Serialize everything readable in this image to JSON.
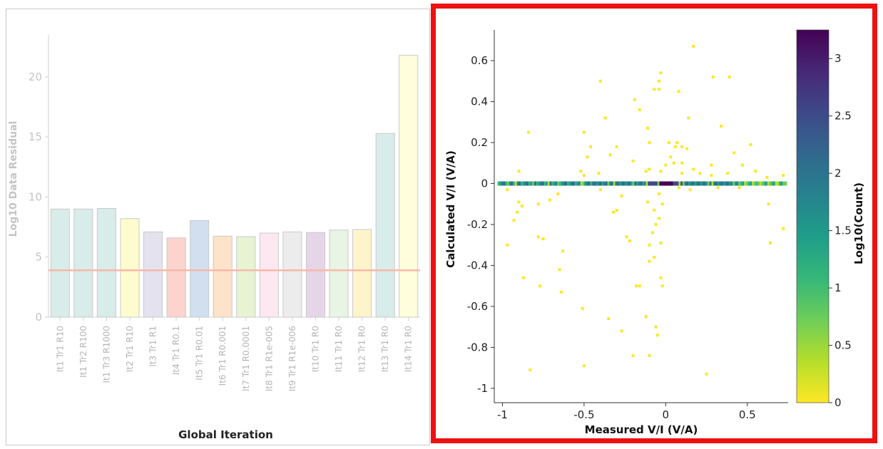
{
  "chart_data": [
    {
      "type": "bar",
      "xlabel": "Global Iteration",
      "ylabel": "Log10 Data Residual",
      "ylim": [
        0,
        23.5
      ],
      "yticks": [
        "0",
        "5",
        "10",
        "15",
        "20"
      ],
      "grid": false,
      "categories": [
        "It1 Tr1 R10",
        "It1 Tr2 R100",
        "It1 Tr3 R1000",
        "It2 Tr1 R10",
        "It3 Tr1 R1",
        "It4 Tr1 R0.1",
        "It5 Tr1 R0.01",
        "It6 Tr1 R0.001",
        "It7 Tr1 R0.0001",
        "It8 Tr1 R1e-005",
        "It9 Tr1 R1e-006",
        "It10 Tr1 R0",
        "It11 Tr1 R0",
        "It12 Tr1 R0",
        "It13 Tr1 R0",
        "It14 Tr1 R0"
      ],
      "values": [
        9.0,
        9.0,
        9.05,
        8.2,
        7.1,
        6.6,
        8.05,
        6.75,
        6.7,
        7.0,
        7.1,
        7.05,
        7.25,
        7.3,
        15.3,
        21.8
      ],
      "bar_colors": [
        "#d8ecea",
        "#d8ecea",
        "#d8ecea",
        "#fefccf",
        "#e4e2ee",
        "#fcd3cd",
        "#d1dfee",
        "#fde3c9",
        "#e6f4d4",
        "#fde8f1",
        "#ececec",
        "#e6d5e8",
        "#e8f4e4",
        "#fdf4cc",
        "#d8ecea",
        "#fefddc"
      ],
      "reference_line": {
        "value": 3.9,
        "color": "#f9b7a8"
      }
    },
    {
      "type": "heatmap",
      "xlabel": "Measured V/I (V/A)",
      "ylabel": "Calculated V/I (V/A)",
      "xlim": [
        -1.05,
        0.75
      ],
      "ylim": [
        -1.07,
        0.75
      ],
      "xticks": [
        "-1",
        "-0.5",
        "0",
        "0.5"
      ],
      "yticks": [
        "-1",
        "-0.8",
        "-0.6",
        "-0.4",
        "-0.2",
        "0",
        "0.2",
        "0.4",
        "0.6"
      ],
      "colorbar": {
        "label": "Log10(Count)",
        "range": [
          0,
          3.25
        ],
        "ticks": [
          "0",
          "0.5",
          "1",
          "1.5",
          "2",
          "2.5",
          "3"
        ],
        "colors": [
          "#fde725",
          "#b5de2b",
          "#6ece58",
          "#35b779",
          "#1f9e89",
          "#26828e",
          "#31688e",
          "#3e4989",
          "#482878",
          "#440154"
        ]
      },
      "points": [
        [
          0.17,
          0.67
        ],
        [
          0.29,
          0.52
        ],
        [
          0.39,
          0.52
        ],
        [
          -0.4,
          0.5
        ],
        [
          -0.03,
          0.54
        ],
        [
          -0.04,
          0.5
        ],
        [
          -0.04,
          0.46
        ],
        [
          -0.07,
          0.46
        ],
        [
          0.08,
          0.45
        ],
        [
          -0.19,
          0.41
        ],
        [
          -0.16,
          0.36
        ],
        [
          0.34,
          0.28
        ],
        [
          -0.37,
          0.32
        ],
        [
          0.14,
          0.32
        ],
        [
          -0.11,
          0.27
        ],
        [
          -0.5,
          0.25
        ],
        [
          -0.84,
          0.25
        ],
        [
          -0.1,
          0.2
        ],
        [
          0.02,
          0.2
        ],
        [
          0.07,
          0.2
        ],
        [
          0.06,
          0.18
        ],
        [
          0.1,
          0.18
        ],
        [
          0.13,
          0.17
        ],
        [
          0.52,
          0.19
        ],
        [
          0.42,
          0.15
        ],
        [
          -0.3,
          0.18
        ],
        [
          -0.46,
          0.18
        ],
        [
          -0.34,
          0.14
        ],
        [
          -0.48,
          0.13
        ],
        [
          0.03,
          0.13
        ],
        [
          -0.2,
          0.11
        ],
        [
          0.0,
          0.09
        ],
        [
          0.05,
          0.1
        ],
        [
          0.1,
          0.1
        ],
        [
          -0.1,
          0.07
        ],
        [
          0.17,
          0.07
        ],
        [
          0.28,
          0.09
        ],
        [
          0.47,
          0.09
        ],
        [
          -0.52,
          0.06
        ],
        [
          -0.5,
          0.04
        ],
        [
          -0.9,
          0.06
        ],
        [
          -0.41,
          0.05
        ],
        [
          -0.12,
          0.06
        ],
        [
          -0.03,
          0.06
        ],
        [
          0.1,
          0.05
        ],
        [
          0.21,
          0.05
        ],
        [
          0.38,
          0.05
        ],
        [
          0.28,
          0.04
        ],
        [
          0.55,
          0.06
        ],
        [
          -0.04,
          -0.05
        ],
        [
          -0.02,
          -0.1
        ],
        [
          -0.11,
          -0.09
        ],
        [
          -0.07,
          -0.13
        ],
        [
          -0.04,
          -0.17
        ],
        [
          -0.06,
          -0.2
        ],
        [
          -0.08,
          -0.24
        ],
        [
          -0.03,
          -0.29
        ],
        [
          -0.1,
          -0.3
        ],
        [
          -0.07,
          -0.36
        ],
        [
          -0.24,
          -0.26
        ],
        [
          -0.22,
          -0.28
        ],
        [
          -0.27,
          -0.06
        ],
        [
          -0.3,
          -0.13
        ],
        [
          -0.32,
          -0.14
        ],
        [
          -0.97,
          -0.03
        ],
        [
          -0.9,
          -0.09
        ],
        [
          -0.88,
          -0.11
        ],
        [
          -0.93,
          -0.18
        ],
        [
          -0.91,
          -0.14
        ],
        [
          -0.78,
          -0.1
        ],
        [
          -0.71,
          -0.08
        ],
        [
          -0.66,
          -0.05
        ],
        [
          -0.4,
          -0.03
        ],
        [
          -0.75,
          -0.27
        ],
        [
          -0.78,
          -0.26
        ],
        [
          -0.63,
          -0.33
        ],
        [
          -0.97,
          -0.3
        ],
        [
          -0.65,
          -0.42
        ],
        [
          -0.87,
          -0.46
        ],
        [
          -0.77,
          -0.5
        ],
        [
          -0.64,
          -0.53
        ],
        [
          -0.1,
          -0.38
        ],
        [
          -0.18,
          -0.5
        ],
        [
          -0.16,
          -0.5
        ],
        [
          -0.03,
          -0.46
        ],
        [
          -0.02,
          -0.5
        ],
        [
          -0.51,
          -0.61
        ],
        [
          -0.35,
          -0.66
        ],
        [
          -0.27,
          -0.72
        ],
        [
          -0.12,
          -0.65
        ],
        [
          -0.06,
          -0.7
        ],
        [
          -0.05,
          -0.74
        ],
        [
          -0.2,
          -0.84
        ],
        [
          -0.1,
          -0.84
        ],
        [
          -0.83,
          -0.91
        ],
        [
          -0.5,
          -0.89
        ],
        [
          0.25,
          -0.93
        ],
        [
          0.63,
          -0.1
        ],
        [
          0.64,
          -0.29
        ],
        [
          0.72,
          -0.22
        ],
        [
          0.08,
          -0.02
        ],
        [
          0.15,
          -0.03
        ],
        [
          0.32,
          -0.02
        ],
        [
          0.45,
          -0.02
        ],
        [
          0.62,
          0.03
        ],
        [
          0.72,
          0.04
        ]
      ]
    }
  ]
}
